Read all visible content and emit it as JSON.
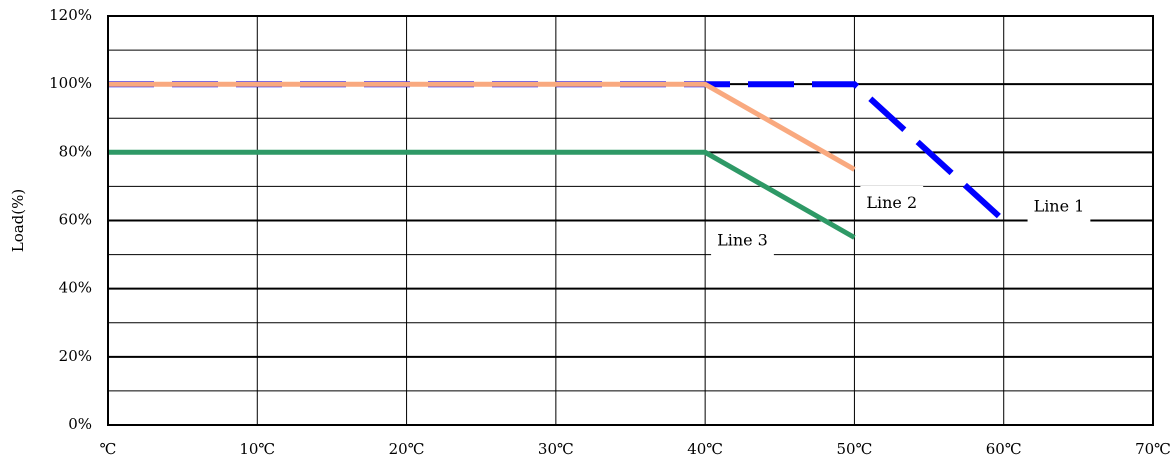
{
  "chart_data": {
    "type": "line",
    "title": "",
    "xlabel": "",
    "ylabel": "Load(%)",
    "xlim": [
      0,
      70
    ],
    "ylim": [
      0,
      120
    ],
    "x_ticks": [
      0,
      10,
      20,
      30,
      40,
      50,
      60,
      70
    ],
    "x_tick_labels": [
      "℃",
      "10℃",
      "20℃",
      "30℃",
      "40℃",
      "50℃",
      "60℃",
      "70℃"
    ],
    "y_ticks": [
      0,
      20,
      40,
      60,
      80,
      100,
      120
    ],
    "y_tick_labels": [
      "0%",
      "20%",
      "40%",
      "60%",
      "80%",
      "100%",
      "120%"
    ],
    "grid": true,
    "minor_y_grid_step": 10,
    "legend": "none",
    "series": [
      {
        "name": "Line 1",
        "color": "#0000FF",
        "style": "dashed",
        "points": [
          [
            0,
            100
          ],
          [
            50,
            100
          ],
          [
            60,
            60
          ]
        ],
        "label_anchor": [
          62,
          64
        ]
      },
      {
        "name": "Line 2",
        "color": "#F9A97F",
        "style": "solid",
        "points": [
          [
            0,
            100
          ],
          [
            40,
            100
          ],
          [
            50,
            75
          ]
        ],
        "label_anchor": [
          50.8,
          65
        ]
      },
      {
        "name": "Line 3",
        "color": "#2E9966",
        "style": "solid",
        "points": [
          [
            0,
            80
          ],
          [
            40,
            80
          ],
          [
            50,
            55
          ]
        ],
        "label_anchor": [
          40.8,
          54
        ]
      }
    ]
  }
}
